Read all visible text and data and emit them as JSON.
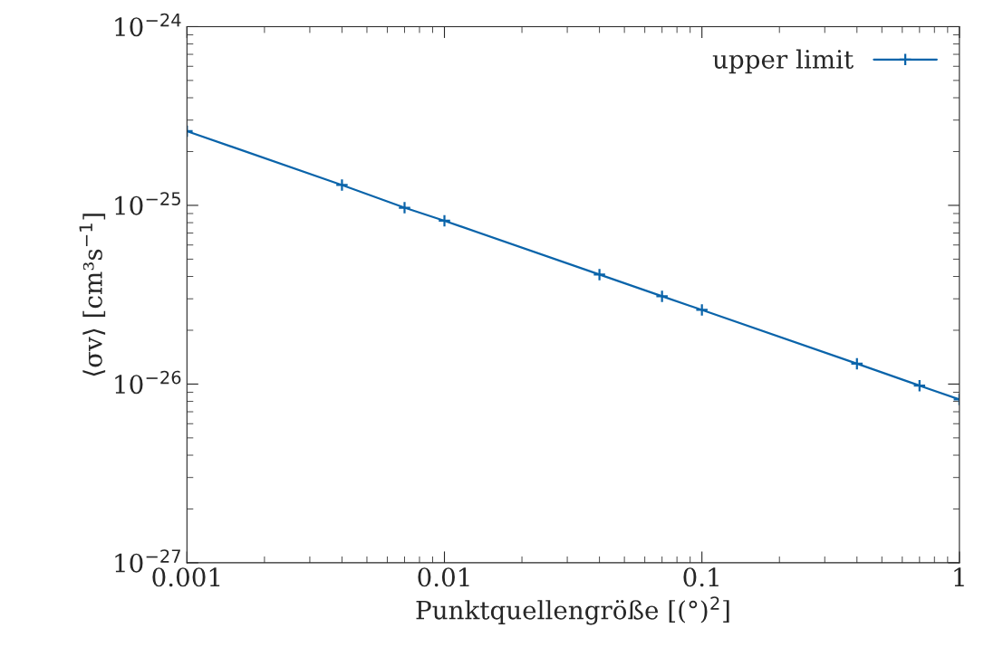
{
  "chart_data": {
    "type": "line",
    "xlabel": "Punktquellengröße [(°)$^{2}$]",
    "ylabel": "⟨σv⟩ [cm³s$^{−1}$]",
    "x": [
      0.001,
      0.004,
      0.007,
      0.01,
      0.04,
      0.07,
      0.1,
      0.4,
      0.7,
      1
    ],
    "series": [
      {
        "name": "upper limit",
        "color": "#0a64aa",
        "values": [
          2.6e-25,
          1.3e-25,
          9.7e-26,
          8.2e-26,
          4.1e-26,
          3.1e-26,
          2.6e-26,
          1.3e-26,
          9.8e-27,
          8.2e-27
        ]
      }
    ],
    "log": "xy",
    "xlim": [
      0.001,
      1
    ],
    "ylim": [
      1e-27,
      1e-24
    ],
    "xticks": [
      0.001,
      0.01,
      0.1,
      1
    ],
    "yticks": [
      {
        "value": 1e-27,
        "label": "10$^{−27}$"
      },
      {
        "value": 1e-26,
        "label": "10$^{−26}$"
      },
      {
        "value": 1e-25,
        "label": "10$^{−25}$"
      },
      {
        "value": 1e-24,
        "label": "10$^{−24}$"
      }
    ],
    "grid": false,
    "legend": "top right",
    "marker": "cross",
    "line_style": "solid"
  }
}
